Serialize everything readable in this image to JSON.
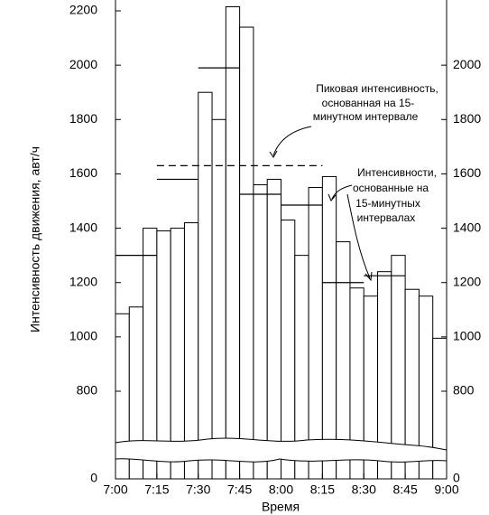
{
  "chart_data": {
    "type": "histogram",
    "y_label": "Интенсивность движения, авт/ч",
    "x_label": "Время",
    "xlim": [
      0,
      120
    ],
    "xticks": [
      {
        "value": 0,
        "label": "7:00"
      },
      {
        "value": 15,
        "label": "7:15"
      },
      {
        "value": 30,
        "label": "7:30"
      },
      {
        "value": 45,
        "label": "7:45"
      },
      {
        "value": 60,
        "label": "8:00"
      },
      {
        "value": 75,
        "label": "8:15"
      },
      {
        "value": 90,
        "label": "8:30"
      },
      {
        "value": 105,
        "label": "8:45"
      },
      {
        "value": 120,
        "label": "9:00"
      }
    ],
    "bins": [
      0,
      5,
      10,
      15,
      20,
      25,
      30,
      35,
      40,
      45,
      50,
      55,
      60,
      65,
      70,
      75,
      80,
      85,
      90,
      95,
      100,
      105,
      110,
      115,
      120
    ],
    "values": [
      1085,
      1110,
      1400,
      1390,
      1400,
      1420,
      1900,
      1800,
      2215,
      2140,
      1560,
      1580,
      1430,
      1300,
      1550,
      1590,
      1350,
      1180,
      1150,
      1240,
      1300,
      1175,
      1150,
      995
    ],
    "ylim": [
      0,
      2200
    ],
    "yticks": [
      0,
      800,
      1000,
      1200,
      1400,
      1600,
      1800,
      2000,
      2200
    ],
    "y2lim": [
      0,
      2200
    ],
    "y2ticks": [
      0,
      800,
      1000,
      1200,
      1400,
      1600,
      1800,
      2000
    ],
    "axis_break": true,
    "color": "#ffffff",
    "segments": [
      {
        "x": [
          0,
          15
        ],
        "value": 1300
      },
      {
        "x": [
          15,
          30
        ],
        "value": 1580
      },
      {
        "x": [
          30,
          45
        ],
        "value": 1990
      },
      {
        "x": [
          45,
          60
        ],
        "value": 1525
      },
      {
        "x": [
          60,
          75
        ],
        "value": 1485
      },
      {
        "x": [
          75,
          90
        ],
        "value": 1200
      },
      {
        "x": [
          90,
          105
        ],
        "value": 1225
      }
    ],
    "peak": {
      "x": [
        15,
        75
      ],
      "value": 1630
    },
    "annotations": [
      {
        "lines": [
          "Пиковая интенсивность,",
          "основанная на 15-",
          "минутном интервале"
        ]
      },
      {
        "lines": [
          "Интенсивности,",
          "основанные на",
          "15-минутных",
          "интервалах"
        ]
      }
    ]
  }
}
